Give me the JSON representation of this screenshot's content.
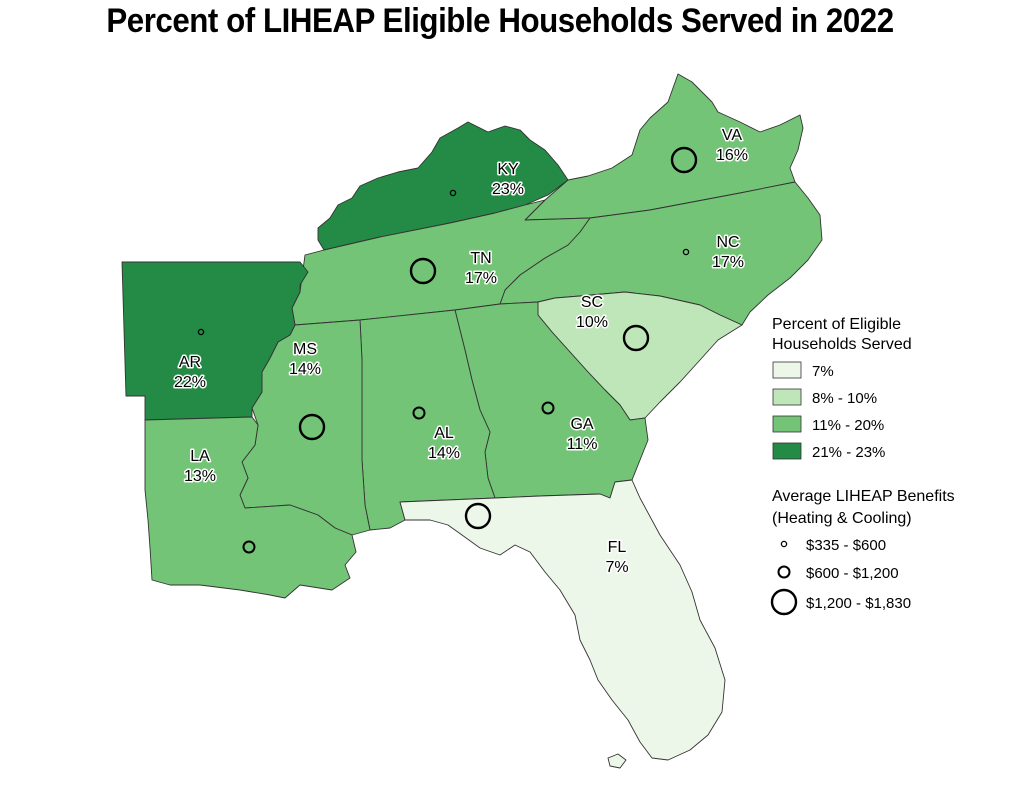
{
  "title": "Percent of LIHEAP Eligible Households Served in 2022",
  "colors": {
    "class_7": "#edf7e9",
    "class_8_10": "#bfe6b8",
    "class_11_20": "#73c476",
    "class_21_23": "#238b45"
  },
  "states": [
    {
      "abbr": "VA",
      "percent_label": "16%",
      "percent": 16,
      "benefit_class": "large"
    },
    {
      "abbr": "KY",
      "percent_label": "23%",
      "percent": 23,
      "benefit_class": "small"
    },
    {
      "abbr": "TN",
      "percent_label": "17%",
      "percent": 17,
      "benefit_class": "large"
    },
    {
      "abbr": "NC",
      "percent_label": "17%",
      "percent": 17,
      "benefit_class": "small"
    },
    {
      "abbr": "SC",
      "percent_label": "10%",
      "percent": 10,
      "benefit_class": "large"
    },
    {
      "abbr": "AR",
      "percent_label": "22%",
      "percent": 22,
      "benefit_class": "small"
    },
    {
      "abbr": "MS",
      "percent_label": "14%",
      "percent": 14,
      "benefit_class": "large"
    },
    {
      "abbr": "AL",
      "percent_label": "14%",
      "percent": 14,
      "benefit_class": "medium"
    },
    {
      "abbr": "GA",
      "percent_label": "11%",
      "percent": 11,
      "benefit_class": "medium"
    },
    {
      "abbr": "LA",
      "percent_label": "13%",
      "percent": 13,
      "benefit_class": "medium"
    },
    {
      "abbr": "FL",
      "percent_label": "7%",
      "percent": 7,
      "benefit_class": "large"
    }
  ],
  "legend_fill": {
    "title_line1": "Percent of Eligible",
    "title_line2": "Households Served",
    "items": [
      {
        "label": "7%",
        "color": "#edf7e9"
      },
      {
        "label": "8% - 10%",
        "color": "#bfe6b8"
      },
      {
        "label": "11% - 20%",
        "color": "#73c476"
      },
      {
        "label": "21% - 23%",
        "color": "#238b45"
      }
    ]
  },
  "legend_symbol": {
    "title_line1": "Average LIHEAP Benefits",
    "title_line2": "(Heating & Cooling)",
    "items": [
      {
        "label": "$335 - $600",
        "size": "small"
      },
      {
        "label": "$600 - $1,200",
        "size": "medium"
      },
      {
        "label": "$1,200 - $1,830",
        "size": "large"
      }
    ]
  }
}
